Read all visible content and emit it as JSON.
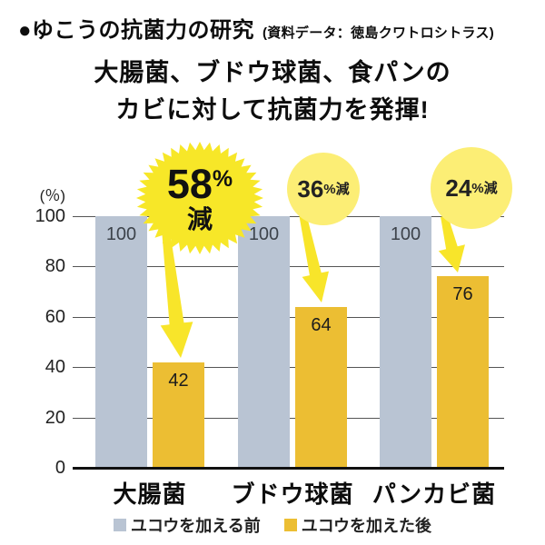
{
  "header": {
    "title": "●ゆこうの抗菌力の研究",
    "source": "(資料データ：徳島クワトロシトラス)"
  },
  "subtitle": {
    "line1": "大腸菌、ブドウ球菌、食パンの",
    "line2": "カビに対して抗菌力を発揮!"
  },
  "chart_data": {
    "type": "bar",
    "title": "ゆこうの抗菌力の研究",
    "unit_label": "(％)",
    "categories": [
      "大腸菌",
      "ブドウ球菌",
      "パンカビ菌"
    ],
    "series": [
      {
        "name": "ユコウを加える前",
        "color": "#b9c4d3",
        "values": [
          100,
          100,
          100
        ]
      },
      {
        "name": "ユコウを加えた後",
        "color": "#ecbe33",
        "values": [
          42,
          64,
          76
        ]
      }
    ],
    "reduction_badges": [
      {
        "value": "58",
        "percent": "%",
        "unit": "減",
        "style": "starburst"
      },
      {
        "value": "36",
        "suffix": "%減",
        "style": "circle"
      },
      {
        "value": "24",
        "suffix": "%減",
        "style": "circle"
      }
    ],
    "y_ticks": [
      100,
      80,
      60,
      40,
      20,
      0
    ],
    "ylim": [
      0,
      100
    ],
    "grid": true,
    "legend_position": "bottom"
  },
  "colors": {
    "bar_before": "#b9c4d3",
    "bar_after": "#ecbe33",
    "starburst": "#f7e728",
    "circle_badge": "#fcee75",
    "arrow": "#f8e52a",
    "grid": "#555555",
    "baseline": "#111111",
    "gray_bar_label": "#3d434b",
    "orange_bar_label": "#1c1c1c"
  }
}
